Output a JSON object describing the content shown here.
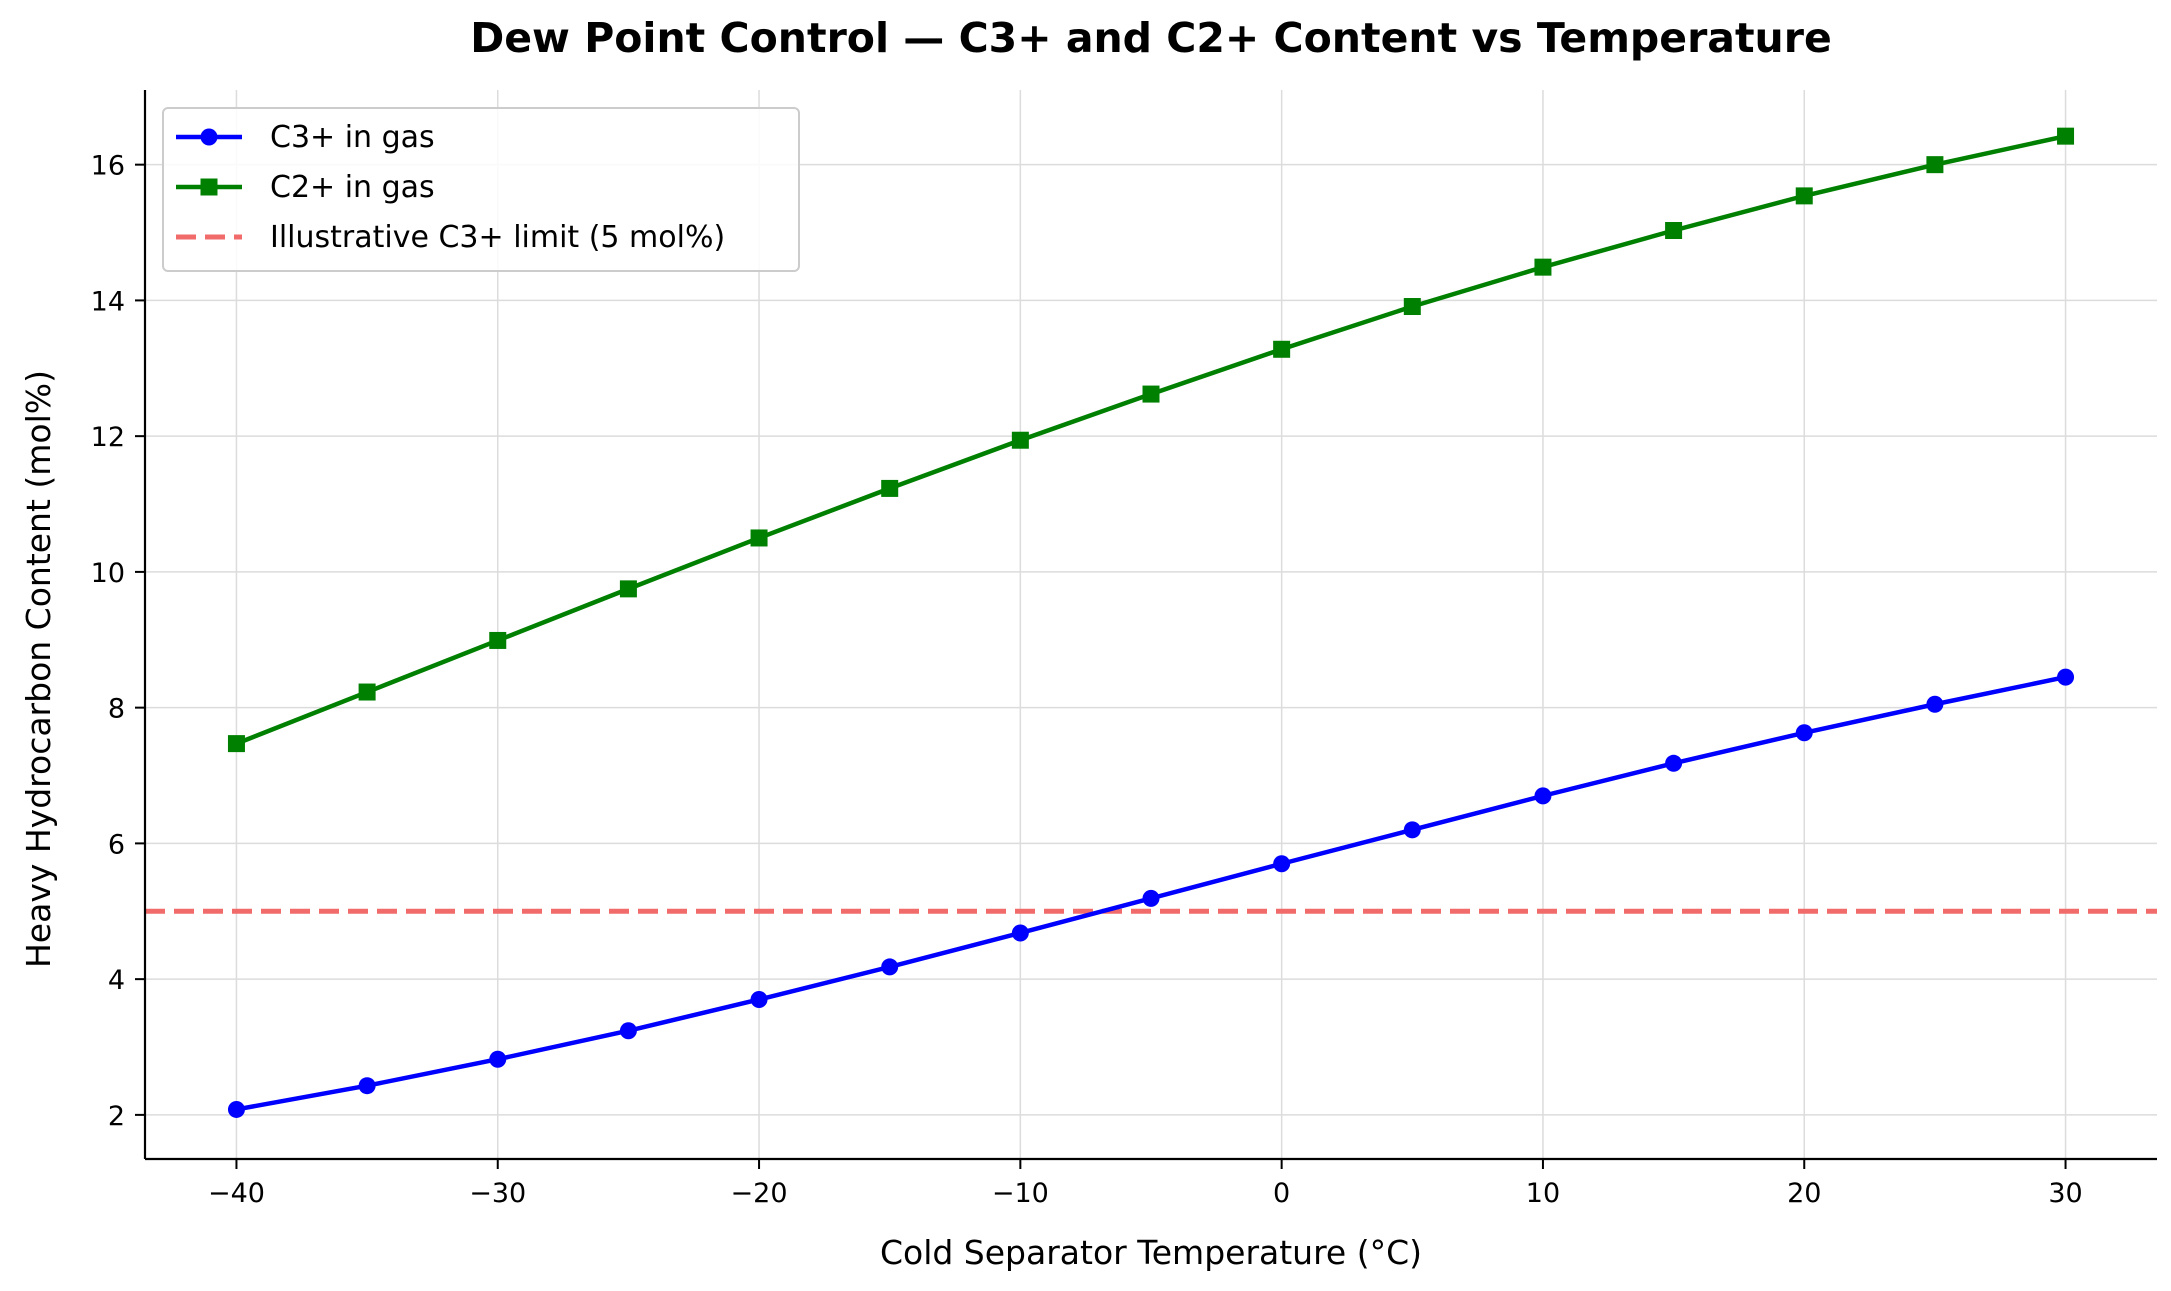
{
  "chart_data": {
    "type": "line",
    "title": "Dew Point Control — C3+ and C2+ Content vs Temperature",
    "xlabel": "Cold Separator Temperature (°C)",
    "ylabel": "Heavy Hydrocarbon Content (mol%)",
    "xlim": [
      -43.5,
      33.5
    ],
    "ylim": [
      1.35,
      17.1
    ],
    "xticks": [
      -40,
      -30,
      -20,
      -10,
      0,
      10,
      20,
      30
    ],
    "xtick_labels": [
      "−40",
      "−30",
      "−20",
      "−10",
      "0",
      "10",
      "20",
      "30"
    ],
    "yticks": [
      2,
      4,
      6,
      8,
      10,
      12,
      14,
      16
    ],
    "ytick_labels": [
      "2",
      "4",
      "6",
      "8",
      "10",
      "12",
      "14",
      "16"
    ],
    "grid": true,
    "legend_position": "top-left",
    "x": [
      -40,
      -35,
      -30,
      -25,
      -20,
      -15,
      -10,
      -5,
      0,
      5,
      10,
      15,
      20,
      25,
      30
    ],
    "series": [
      {
        "name": "C3+ in gas",
        "color": "#0000ff",
        "marker": "circle",
        "values": [
          2.08,
          2.43,
          2.82,
          3.24,
          3.7,
          4.18,
          4.68,
          5.19,
          5.7,
          6.2,
          6.7,
          7.18,
          7.63,
          8.05,
          8.45
        ]
      },
      {
        "name": "C2+ in gas",
        "color": "#008000",
        "marker": "square",
        "values": [
          7.47,
          8.23,
          8.99,
          9.75,
          10.5,
          11.23,
          11.94,
          12.62,
          13.28,
          13.91,
          14.49,
          15.03,
          15.54,
          16.0,
          16.42
        ]
      }
    ],
    "reference_lines": [
      {
        "name": "Illustrative C3+ limit (5 mol%)",
        "y": 5,
        "color": "#f26b6b",
        "style": "dashed"
      }
    ]
  }
}
